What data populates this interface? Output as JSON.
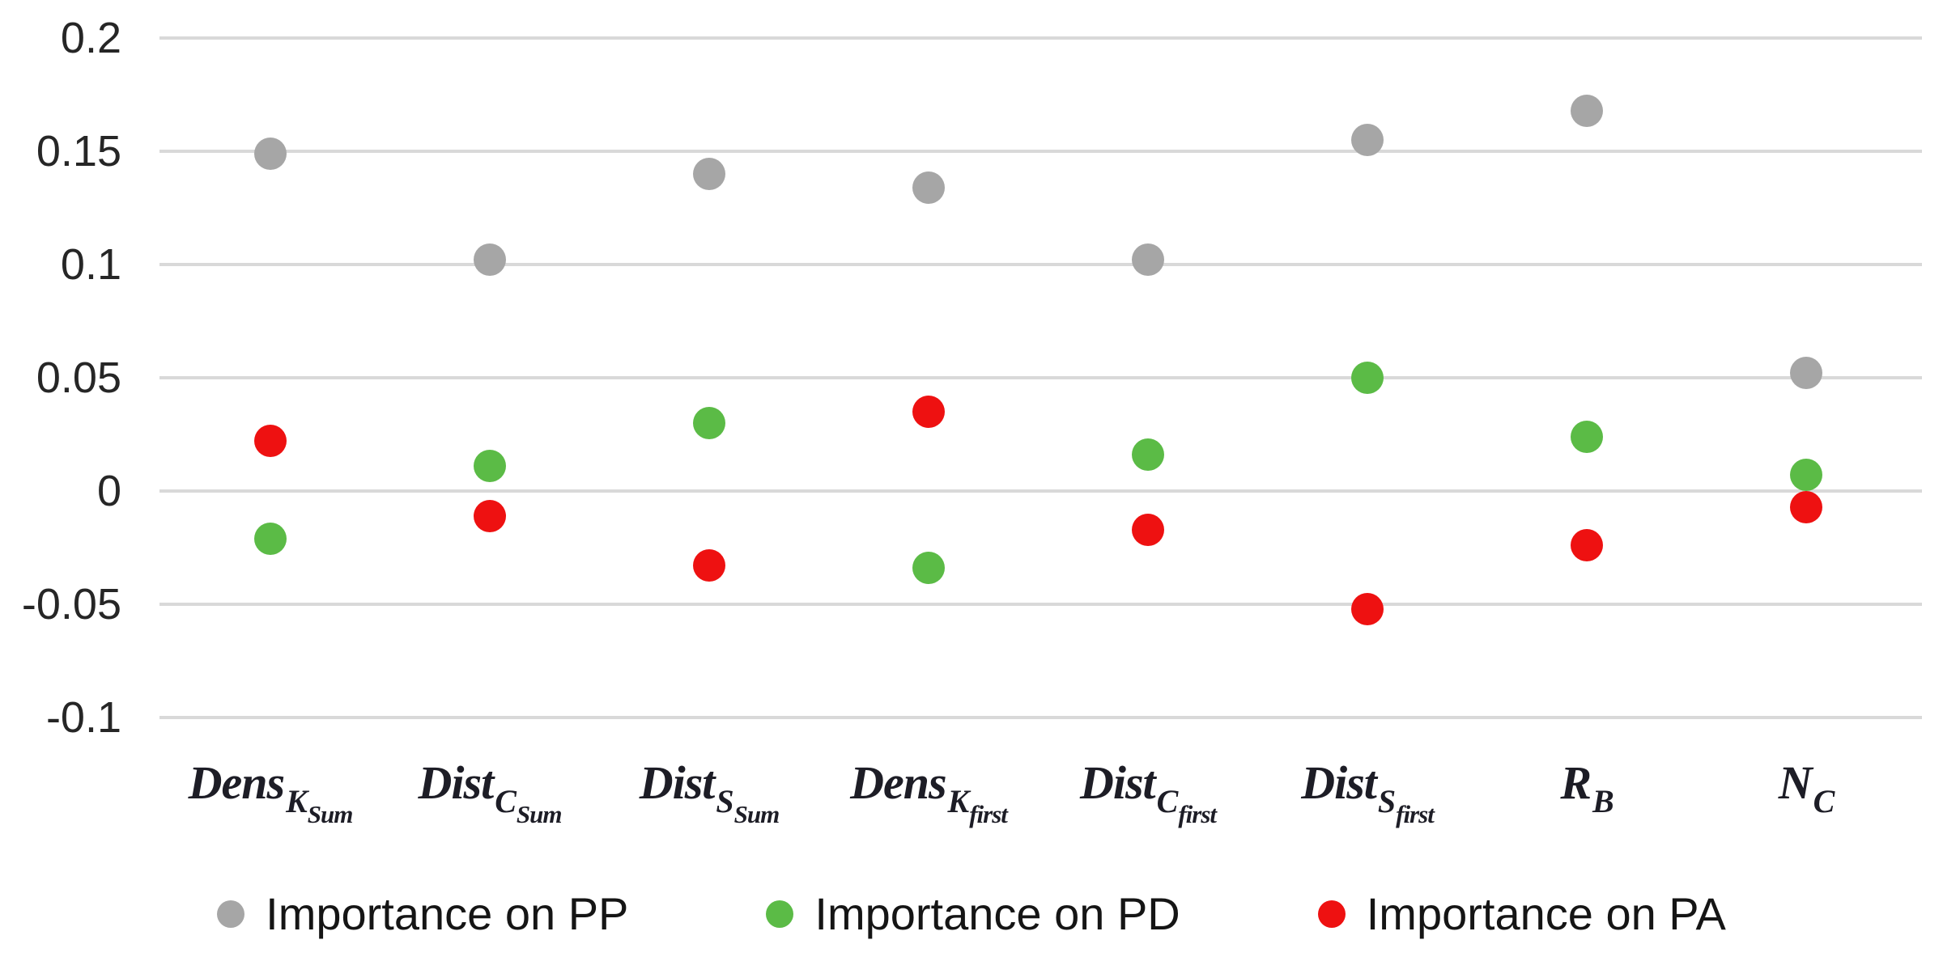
{
  "chart_data": {
    "type": "scatter",
    "title": "",
    "xlabel": "",
    "ylabel": "",
    "grid": true,
    "legend_position": "bottom",
    "ylim": [
      -0.1,
      0.2
    ],
    "ytick_values": [
      0.2,
      0.15,
      0.1,
      0.05,
      0,
      -0.05,
      -0.1
    ],
    "ytick_labels": [
      "0.2",
      "0.15",
      "0.1",
      "0.05",
      "0",
      "-0.05",
      "-0.1"
    ],
    "categories": [
      {
        "plain": "Dens_K_Sum",
        "base": "Dens",
        "sub": "K",
        "subsub": "Sum"
      },
      {
        "plain": "Dist_C_Sum",
        "base": "Dist",
        "sub": "C",
        "subsub": "Sum"
      },
      {
        "plain": "Dist_S_Sum",
        "base": "Dist",
        "sub": "S",
        "subsub": "Sum"
      },
      {
        "plain": "Dens_K_first",
        "base": "Dens",
        "sub": "K",
        "subsub": "first"
      },
      {
        "plain": "Dist_C_first",
        "base": "Dist",
        "sub": "C",
        "subsub": "first"
      },
      {
        "plain": "Dist_S_first",
        "base": "Dist",
        "sub": "S",
        "subsub": "first"
      },
      {
        "plain": "R_B",
        "base": "R",
        "sub": "B",
        "subsub": ""
      },
      {
        "plain": "N_C",
        "base": "N",
        "sub": "C",
        "subsub": ""
      }
    ],
    "series": [
      {
        "key": "pp",
        "name": "Importance on PP",
        "color": "#a6a6a6",
        "values": [
          0.149,
          0.102,
          0.14,
          0.134,
          0.102,
          0.155,
          0.168,
          0.052
        ]
      },
      {
        "key": "pd",
        "name": "Importance on PD",
        "color": "#5bbb46",
        "values": [
          -0.021,
          0.011,
          0.03,
          -0.034,
          0.016,
          0.05,
          0.024,
          0.007
        ]
      },
      {
        "key": "pa",
        "name": "Importance on PA",
        "color": "#ee1111",
        "values": [
          0.022,
          -0.011,
          -0.033,
          0.035,
          -0.017,
          -0.052,
          -0.024,
          -0.007
        ]
      }
    ],
    "colors": {
      "gridline": "#d9d9d9",
      "axis_text": "#262626",
      "category_text": "#1d1d26",
      "legend_text": "#151515",
      "background": "#ffffff"
    }
  }
}
